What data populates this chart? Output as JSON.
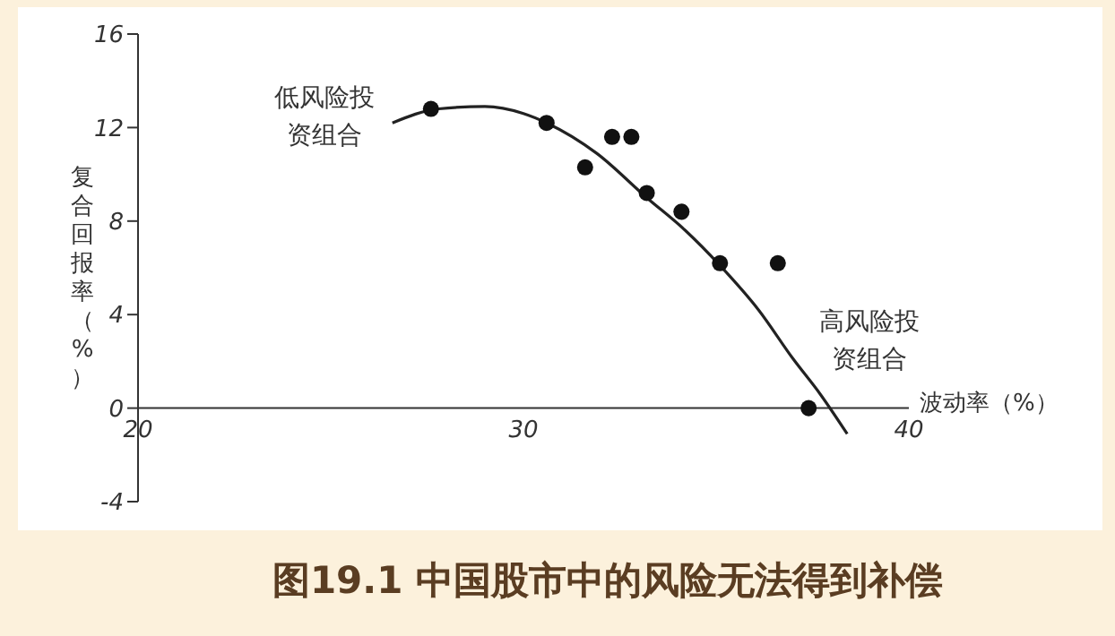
{
  "chart_data": {
    "type": "scatter",
    "title": "图19.1 中国股市中的风险无法得到补偿",
    "xlabel": "波动率（%）",
    "ylabel": "复合回报率（%）",
    "annotations": [
      "低风险投资组合",
      "高风险投资组合"
    ],
    "xlim": [
      20,
      40
    ],
    "xticks": [
      20,
      30,
      40
    ],
    "ylim": [
      -4,
      16
    ],
    "yticks": [
      -4,
      0,
      4,
      8,
      12,
      16
    ],
    "grid": false,
    "legend": false,
    "series": [
      {
        "type": "scatter",
        "marker": "circle",
        "color": "#111111",
        "x": [
          27.6,
          30.6,
          31.6,
          32.3,
          32.8,
          33.2,
          34.1,
          35.1,
          36.6,
          37.4
        ],
        "values": [
          12.8,
          12.2,
          10.3,
          11.6,
          11.6,
          9.2,
          8.4,
          6.2,
          6.2,
          0
        ]
      },
      {
        "type": "line",
        "marker": "none",
        "line_style": "solid",
        "color": "#222222",
        "x": [
          26.6,
          27.8,
          29.0,
          30.0,
          30.6,
          31.9,
          33.2,
          34.2,
          35.1,
          36.1,
          37.0,
          37.7,
          38.4
        ],
        "values": [
          12.2,
          12.8,
          12.9,
          12.6,
          12.2,
          10.9,
          9.0,
          7.6,
          6.1,
          4.2,
          2.1,
          0.6,
          -1.1
        ]
      }
    ]
  }
}
